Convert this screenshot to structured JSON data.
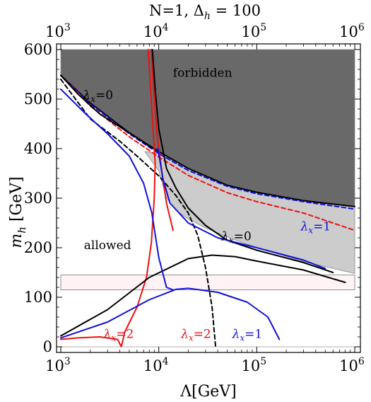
{
  "chart_data": {
    "type": "line",
    "title_prefix": "N=1, ",
    "title_symbol": "Δ",
    "title_sub": "h",
    "title_suffix": " = 100",
    "xlabel": "Λ[GeV]",
    "ylabel_symbol": "m",
    "ylabel_sub": "h",
    "ylabel_suffix": " [GeV]",
    "xscale": "log",
    "xlim": [
      1000,
      1000000
    ],
    "ylim": [
      0,
      600
    ],
    "x_tick_base": "10",
    "x_tick_exponents": [
      "3",
      "4",
      "5",
      "6"
    ],
    "x_ticks": [
      1000,
      10000,
      100000,
      1000000
    ],
    "y_ticks": [
      0,
      100,
      200,
      300,
      400,
      500,
      600
    ],
    "y_tick_labels": [
      "0",
      "100",
      "200",
      "300",
      "400",
      "500",
      "600"
    ],
    "colors": {
      "black": "#000000",
      "red": "#ee1111",
      "blue": "#1010dd",
      "dark_gray": "#696969",
      "light_gray": "#cccccc",
      "band": "#fff3f6"
    },
    "regions": [
      {
        "label": "forbidden",
        "color": "#696969",
        "upper": [
          [
            1000,
            600
          ],
          [
            1000000,
            600
          ]
        ],
        "lower": [
          [
            1000,
            548
          ],
          [
            2000,
            492
          ],
          [
            5000,
            432
          ],
          [
            10000,
            394
          ],
          [
            20000,
            360
          ],
          [
            50000,
            326
          ],
          [
            100000,
            312
          ],
          [
            300000,
            295
          ],
          [
            1000000,
            283
          ]
        ]
      },
      {
        "label": "",
        "color": "#cccccc",
        "upper": [
          [
            7200,
            394
          ],
          [
            10000,
            390
          ],
          [
            20000,
            360
          ],
          [
            50000,
            326
          ],
          [
            100000,
            312
          ],
          [
            300000,
            295
          ],
          [
            1000000,
            283
          ]
        ],
        "lower": [
          [
            7200,
            394
          ],
          [
            10000,
            355
          ],
          [
            12000,
            300
          ],
          [
            15000,
            275
          ],
          [
            20000,
            258
          ],
          [
            30000,
            240
          ],
          [
            50000,
            222
          ],
          [
            100000,
            200
          ],
          [
            300000,
            172
          ],
          [
            1000000,
            148
          ]
        ]
      }
    ],
    "band": {
      "ymin": 115,
      "ymax": 145
    },
    "series": [
      {
        "color": "#000000",
        "dash": "solid",
        "points": [
          [
            1000,
            548
          ],
          [
            2000,
            492
          ],
          [
            5000,
            432
          ],
          [
            10000,
            394
          ],
          [
            20000,
            360
          ],
          [
            50000,
            326
          ],
          [
            100000,
            312
          ],
          [
            300000,
            295
          ],
          [
            1000000,
            283
          ]
        ]
      },
      {
        "color": "#1010dd",
        "dash": "dashed",
        "points": [
          [
            1000,
            548
          ],
          [
            2000,
            490
          ],
          [
            5000,
            430
          ],
          [
            10000,
            390
          ],
          [
            20000,
            356
          ],
          [
            50000,
            324
          ],
          [
            100000,
            309
          ],
          [
            300000,
            293
          ],
          [
            1000000,
            278
          ]
        ]
      },
      {
        "color": "#ee1111",
        "dash": "dashed",
        "points": [
          [
            1000,
            548
          ],
          [
            2000,
            486
          ],
          [
            5000,
            424
          ],
          [
            10000,
            383
          ],
          [
            20000,
            346
          ],
          [
            50000,
            311
          ],
          [
            100000,
            293
          ],
          [
            300000,
            270
          ],
          [
            1000000,
            235
          ]
        ]
      },
      {
        "color": "#000000",
        "dash": "solid",
        "points": [
          [
            1000,
            548
          ],
          [
            1500,
            510
          ],
          [
            2500,
            470
          ],
          [
            4000,
            444
          ],
          [
            6000,
            422
          ],
          [
            8000,
            405
          ],
          [
            10000,
            394
          ]
        ]
      },
      {
        "color": "#000000",
        "dash": "dashed",
        "points": [
          [
            1000,
            540
          ],
          [
            2000,
            460
          ],
          [
            4000,
            415
          ],
          [
            6000,
            385
          ],
          [
            10000,
            345
          ],
          [
            15000,
            305
          ],
          [
            20000,
            270
          ],
          [
            25000,
            225
          ],
          [
            30000,
            160
          ],
          [
            35000,
            80
          ],
          [
            38000,
            0
          ]
        ]
      },
      {
        "color": "#ee1111",
        "dash": "solid",
        "points": [
          [
            7800,
            600
          ],
          [
            8200,
            530
          ],
          [
            8800,
            430
          ],
          [
            9200,
            370
          ],
          [
            9000,
            300
          ],
          [
            8400,
            210
          ],
          [
            7500,
            140
          ],
          [
            6000,
            80
          ],
          [
            4500,
            30
          ],
          [
            4150,
            0
          ],
          [
            3800,
            15
          ],
          [
            2500,
            20
          ],
          [
            1500,
            18
          ],
          [
            1000,
            15
          ]
        ]
      },
      {
        "color": "#ee1111",
        "dash": "solid",
        "points": [
          [
            8400,
            600
          ],
          [
            8800,
            530
          ],
          [
            9500,
            440
          ],
          [
            10000,
            400
          ],
          [
            11000,
            340
          ],
          [
            12000,
            290
          ],
          [
            14000,
            235
          ]
        ]
      },
      {
        "color": "#000000",
        "dash": "solid",
        "points": [
          [
            8600,
            600
          ],
          [
            9200,
            520
          ],
          [
            10000,
            440
          ],
          [
            12000,
            360
          ],
          [
            15000,
            320
          ],
          [
            20000,
            280
          ],
          [
            30000,
            245
          ],
          [
            50000,
            215
          ],
          [
            100000,
            195
          ],
          [
            300000,
            170
          ],
          [
            600000,
            150
          ]
        ]
      },
      {
        "color": "#1010dd",
        "dash": "solid",
        "points": [
          [
            9800,
            400
          ],
          [
            11000,
            340
          ],
          [
            13000,
            290
          ],
          [
            20000,
            250
          ],
          [
            40000,
            220
          ],
          [
            100000,
            200
          ],
          [
            300000,
            175
          ],
          [
            500000,
            158
          ]
        ]
      },
      {
        "color": "#000000",
        "dash": "solid",
        "points": [
          [
            1000,
            22
          ],
          [
            3000,
            75
          ],
          [
            8000,
            140
          ],
          [
            20000,
            178
          ],
          [
            35000,
            185
          ],
          [
            60000,
            182
          ],
          [
            100000,
            173
          ],
          [
            300000,
            155
          ],
          [
            800000,
            130
          ]
        ]
      },
      {
        "color": "#1010dd",
        "dash": "solid",
        "points": [
          [
            1000,
            18
          ],
          [
            3000,
            50
          ],
          [
            8000,
            95
          ],
          [
            15000,
            116
          ],
          [
            20000,
            118
          ],
          [
            40000,
            110
          ],
          [
            80000,
            90
          ],
          [
            130000,
            60
          ],
          [
            170000,
            15
          ]
        ]
      },
      {
        "color": "#1010dd",
        "dash": "solid",
        "points": [
          [
            1000,
            520
          ],
          [
            1800,
            470
          ],
          [
            3000,
            430
          ],
          [
            5000,
            385
          ],
          [
            7000,
            330
          ],
          [
            8500,
            270
          ],
          [
            10000,
            180
          ],
          [
            12000,
            120
          ],
          [
            14000,
            115
          ]
        ]
      }
    ],
    "annotations": [
      {
        "kind": "label",
        "text": "forbidden",
        "x": 28000,
        "y": 545
      },
      {
        "kind": "label",
        "text": "allowed",
        "x": 3000,
        "y": 197
      },
      {
        "kind": "lambda",
        "sub": "x",
        "value": "=0",
        "color": "#000000",
        "x": 2400,
        "y": 500
      },
      {
        "kind": "lambda",
        "sub": "x",
        "value": "=0",
        "color": "#000000",
        "x": 62000,
        "y": 215
      },
      {
        "kind": "lambda",
        "sub": "x",
        "value": "=1",
        "color": "#1010dd",
        "x": 400000,
        "y": 235
      },
      {
        "kind": "lambda",
        "sub": "x",
        "value": "=2",
        "color": "#ee1111",
        "x": 3900,
        "y": 18
      },
      {
        "kind": "lambda",
        "sub": "x",
        "value": "=2",
        "color": "#ee1111",
        "x": 24000,
        "y": 18
      },
      {
        "kind": "lambda",
        "sub": "x",
        "value": "=1",
        "color": "#1010dd",
        "x": 80000,
        "y": 18
      }
    ]
  }
}
